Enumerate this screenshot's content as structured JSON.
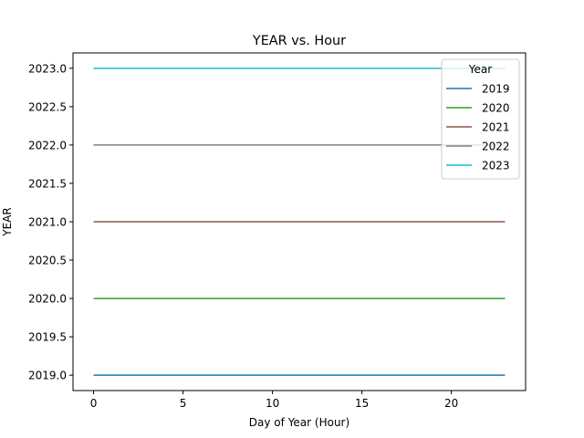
{
  "chart_data": {
    "type": "line",
    "title": "YEAR vs. Hour",
    "xlabel": "Day of Year (Hour)",
    "ylabel": "YEAR",
    "xlim": [
      -1.15,
      24.15
    ],
    "ylim": [
      2018.8,
      2023.2
    ],
    "xticks": [
      0,
      5,
      10,
      15,
      20
    ],
    "xtick_labels": [
      "0",
      "5",
      "10",
      "15",
      "20"
    ],
    "yticks": [
      2019.0,
      2019.5,
      2020.0,
      2020.5,
      2021.0,
      2021.5,
      2022.0,
      2022.5,
      2023.0
    ],
    "ytick_labels": [
      "2019.0",
      "2019.5",
      "2020.0",
      "2020.5",
      "2021.0",
      "2021.5",
      "2022.0",
      "2022.5",
      "2023.0"
    ],
    "grid": false,
    "legend": {
      "title": "Year",
      "placement": "top-right"
    },
    "x": [
      0,
      23
    ],
    "series": [
      {
        "name": "2019",
        "color": "#1f77b4",
        "values": [
          2019,
          2019
        ]
      },
      {
        "name": "2020",
        "color": "#2ca02c",
        "values": [
          2020,
          2020
        ]
      },
      {
        "name": "2021",
        "color": "#8c564b",
        "values": [
          2021,
          2021
        ]
      },
      {
        "name": "2022",
        "color": "#7f7f7f",
        "values": [
          2022,
          2022
        ]
      },
      {
        "name": "2023",
        "color": "#17becf",
        "values": [
          2023,
          2023
        ]
      }
    ]
  }
}
